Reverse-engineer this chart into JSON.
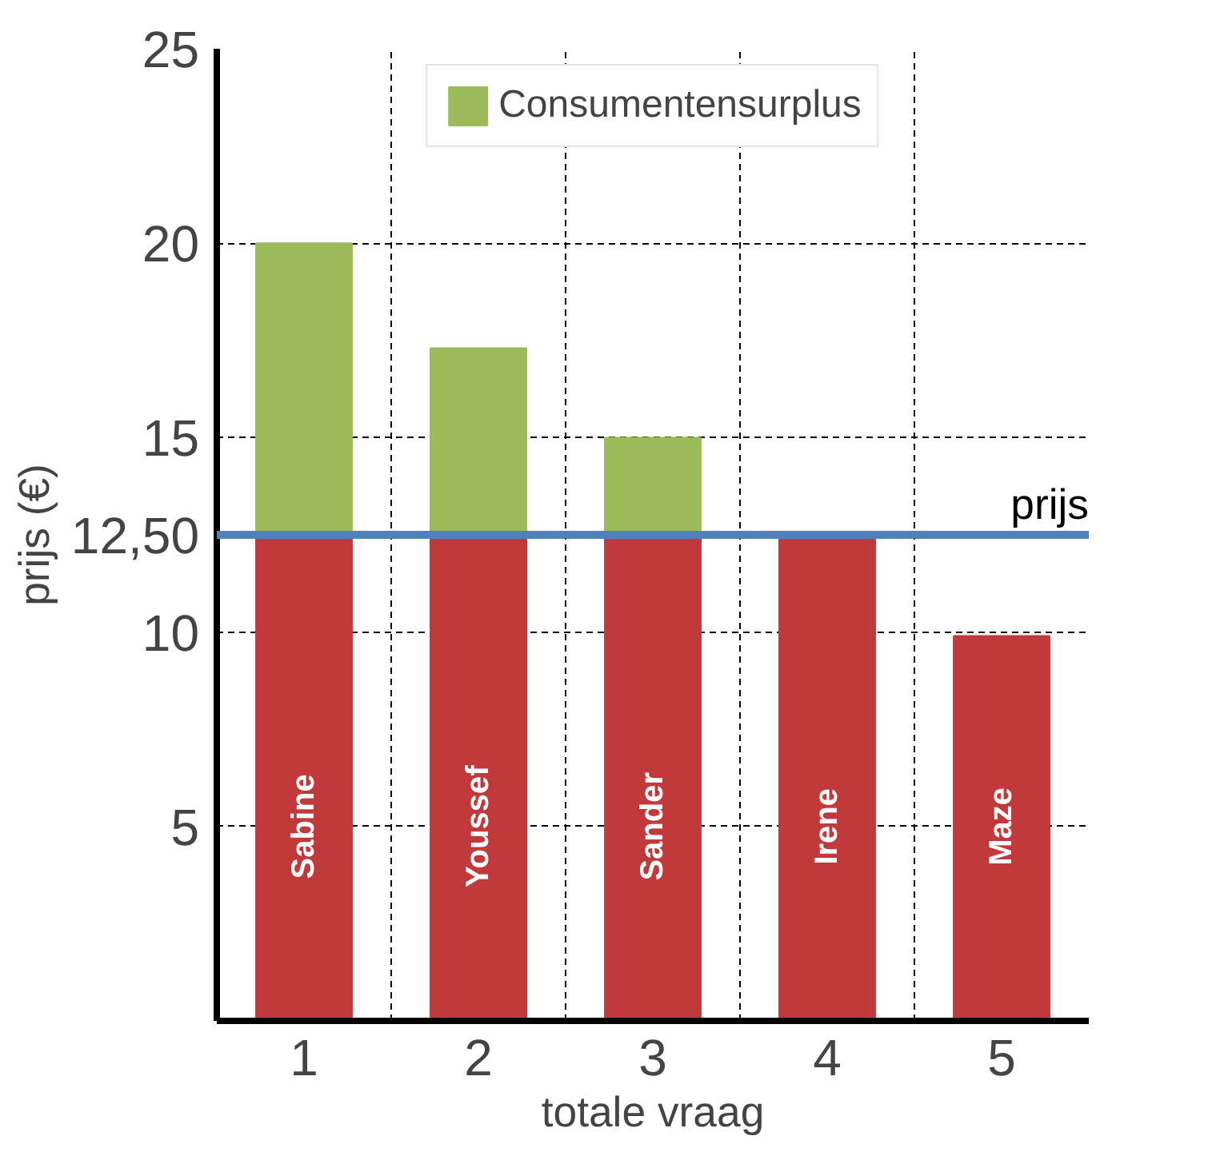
{
  "chart_data": {
    "type": "bar",
    "stacked": true,
    "categories": [
      "1",
      "2",
      "3",
      "4",
      "5"
    ],
    "series": [
      {
        "color": "#c0393b",
        "values": [
          12.5,
          12.5,
          12.5,
          12.5,
          9.9
        ]
      },
      {
        "name": "Consumentensurplus",
        "color": "#9bbb59",
        "values": [
          7.5,
          4.8,
          2.5,
          null,
          null
        ]
      }
    ],
    "xlabel": "totale vraag",
    "ylabel": "prijs (€)",
    "ylim": [
      0,
      25
    ],
    "yticks": [
      5,
      10,
      {
        "value": 12.5,
        "label": "12,50"
      },
      15,
      20,
      25
    ],
    "ref_lines": [
      {
        "axis": "y",
        "value": 12.5,
        "label": "prijs",
        "color": "#4f81bd"
      }
    ],
    "annotations": [
      "Sabine",
      "Youssef",
      "Sander",
      "Irene",
      "Maze"
    ],
    "grid": true,
    "legend": "top"
  }
}
